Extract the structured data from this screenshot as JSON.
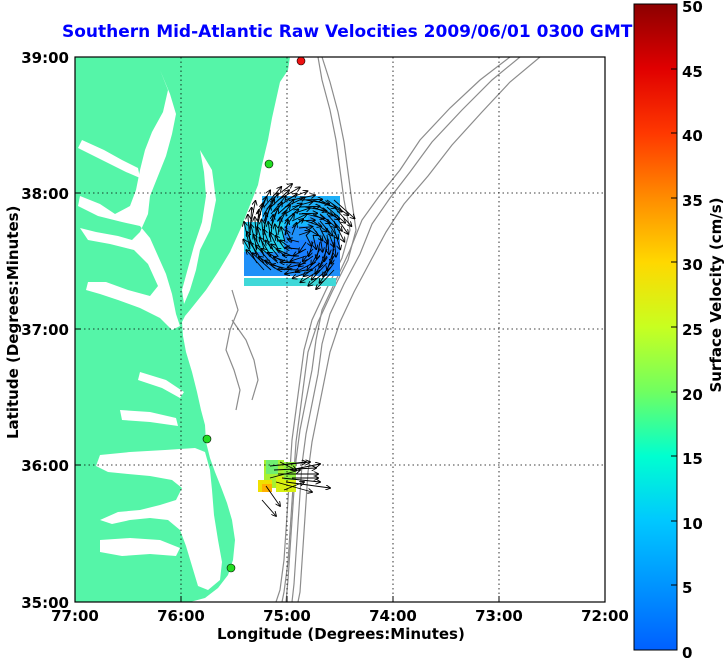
{
  "title": "Southern Mid-Atlantic Raw Velocities 2009/06/01 0300 GMT",
  "x_axis": {
    "label": "Longitude (Degrees:Minutes)",
    "ticks": [
      "77:00",
      "76:00",
      "75:00",
      "74:00",
      "73:00",
      "72:00"
    ]
  },
  "y_axis": {
    "label": "Latitude (Degrees:Minutes)",
    "ticks": [
      "39:00",
      "38:00",
      "37:00",
      "36:00",
      "35:00"
    ]
  },
  "colorbar": {
    "label": "Surface Velocity (cm/s)",
    "ticks": [
      "0",
      "5",
      "10",
      "15",
      "20",
      "25",
      "30",
      "35",
      "40",
      "45",
      "50"
    ]
  },
  "colors": {
    "land": "#55f5a8",
    "title": "#0000ff",
    "contour": "#8c8c8c",
    "station_green": "#22dd22",
    "station_red": "#ee1111"
  },
  "grid": "dotted",
  "stations": [
    {
      "color": "red"
    },
    {
      "color": "green"
    },
    {
      "color": "green"
    },
    {
      "color": "green"
    }
  ]
}
